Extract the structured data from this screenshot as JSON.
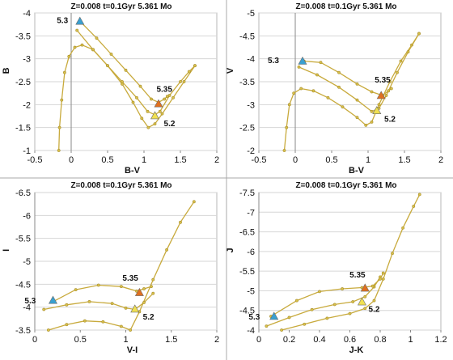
{
  "chart_data": [
    {
      "id": "BV_B",
      "type": "line",
      "title": "Z=0.008  t=0.1Gyr  5.361 Mo",
      "xlabel": "B-V",
      "ylabel": "B",
      "xlim": [
        -0.5,
        2
      ],
      "ylim": [
        -1,
        -4
      ],
      "xticks": [
        -0.5,
        0,
        0.5,
        1,
        1.5,
        2
      ],
      "yticks": [
        -1,
        -1.5,
        -2,
        -2.5,
        -3,
        -3.5,
        -4
      ],
      "xtick_labels": [
        "-0.5",
        "0",
        "0.5",
        "1",
        "1.5",
        "2"
      ],
      "ytick_labels": [
        "-1",
        "-1.5",
        "-2",
        "-2.5",
        "-3",
        "-3.5",
        "-4"
      ],
      "y_inverted": true,
      "grid": true,
      "series": [
        {
          "x": [
            -0.17,
            -0.16,
            -0.13,
            -0.09,
            -0.03,
            0.05,
            0.15,
            0.3,
            0.5,
            0.7,
            0.85,
            0.97,
            1.06,
            1.15,
            1.25,
            1.4,
            1.55,
            1.7
          ],
          "y": [
            -1.0,
            -1.5,
            -2.1,
            -2.7,
            -3.05,
            -3.25,
            -3.3,
            -3.2,
            -2.85,
            -2.45,
            -2.05,
            -1.7,
            -1.5,
            -1.58,
            -1.8,
            -2.15,
            -2.5,
            -2.85
          ]
        },
        {
          "x": [
            0.08,
            0.3,
            0.5,
            0.7,
            0.9,
            1.05,
            1.15,
            1.22,
            1.35,
            1.5,
            1.62,
            1.7
          ],
          "y": [
            -3.62,
            -3.2,
            -2.85,
            -2.5,
            -2.15,
            -1.85,
            -1.78,
            -1.85,
            -2.2,
            -2.5,
            -2.72,
            -2.85
          ]
        },
        {
          "x": [
            0.12,
            0.35,
            0.55,
            0.75,
            0.95,
            1.1,
            1.2,
            1.28,
            1.32
          ],
          "y": [
            -3.82,
            -3.45,
            -3.1,
            -2.75,
            -2.4,
            -2.12,
            -2.05,
            -2.12,
            -2.18
          ]
        }
      ],
      "markers": [
        {
          "label": "5.3",
          "x": 0.12,
          "y": -3.82,
          "color": "#3aa0d0",
          "lx": -0.12,
          "ly": -3.85
        },
        {
          "label": "5.35",
          "x": 1.2,
          "y": -2.02,
          "color": "#e07020",
          "lx": 1.28,
          "ly": -2.35
        },
        {
          "label": "5.2",
          "x": 1.15,
          "y": -1.76,
          "color": "#f0e050",
          "lx": 1.35,
          "ly": -1.6
        }
      ]
    },
    {
      "id": "BV_V",
      "type": "line",
      "title": "Z=0.008  t=0.1Gyr  5.361 Mo",
      "xlabel": "B-V",
      "ylabel": "V",
      "xlim": [
        -0.5,
        2
      ],
      "ylim": [
        -2,
        -5
      ],
      "xticks": [
        -0.5,
        0,
        0.5,
        1,
        1.5,
        2
      ],
      "yticks": [
        -2,
        -2.5,
        -3,
        -3.5,
        -4,
        -4.5,
        -5
      ],
      "xtick_labels": [
        "-0.5",
        "0",
        "0.5",
        "1",
        "1.5",
        "2"
      ],
      "ytick_labels": [
        "-2",
        "-2.5",
        "-3",
        "-3.5",
        "-4",
        "-4.5",
        "-5"
      ],
      "y_inverted": true,
      "grid": true,
      "series": [
        {
          "x": [
            -0.15,
            -0.12,
            -0.08,
            -0.02,
            0.08,
            0.25,
            0.45,
            0.65,
            0.85,
            0.97,
            1.05,
            1.15,
            1.3,
            1.45,
            1.6,
            1.7
          ],
          "y": [
            -2.0,
            -2.5,
            -3.0,
            -3.25,
            -3.35,
            -3.3,
            -3.15,
            -2.95,
            -2.72,
            -2.55,
            -2.62,
            -3.0,
            -3.5,
            -3.95,
            -4.3,
            -4.55
          ]
        },
        {
          "x": [
            0.05,
            0.3,
            0.6,
            0.85,
            1.05,
            1.15,
            1.25,
            1.4,
            1.55,
            1.7
          ],
          "y": [
            -3.82,
            -3.65,
            -3.38,
            -3.1,
            -2.85,
            -2.92,
            -3.2,
            -3.7,
            -4.15,
            -4.55
          ]
        },
        {
          "x": [
            0.12,
            0.35,
            0.6,
            0.85,
            1.05,
            1.2,
            1.28,
            1.32
          ],
          "y": [
            -3.95,
            -3.92,
            -3.7,
            -3.45,
            -3.28,
            -3.2,
            -3.3,
            -3.35
          ]
        }
      ],
      "markers": [
        {
          "label": "5.3",
          "x": 0.1,
          "y": -3.95,
          "color": "#3aa0d0",
          "lx": -0.3,
          "ly": -3.98
        },
        {
          "label": "5.35",
          "x": 1.18,
          "y": -3.2,
          "color": "#e07020",
          "lx": 1.2,
          "ly": -3.55
        },
        {
          "label": "5.2",
          "x": 1.12,
          "y": -2.87,
          "color": "#f0e050",
          "lx": 1.3,
          "ly": -2.7
        }
      ]
    },
    {
      "id": "VI_I",
      "type": "line",
      "title": "Z=0.008  t=0.1Gyr  5.361 Mo",
      "xlabel": "V-I",
      "ylabel": "I",
      "xlim": [
        0,
        2
      ],
      "ylim": [
        -3.5,
        -6.5
      ],
      "xticks": [
        0,
        0.5,
        1,
        1.5,
        2
      ],
      "yticks": [
        -3.5,
        -4,
        -4.5,
        -5,
        -5.5,
        -6,
        -6.5
      ],
      "xtick_labels": [
        "0",
        "0.5",
        "1",
        "1.5",
        "2"
      ],
      "ytick_labels": [
        "-3.5",
        "-4",
        "-4.5",
        "-5",
        "-5.5",
        "-6",
        "-6.5"
      ],
      "y_inverted": true,
      "grid": true,
      "series": [
        {
          "x": [
            0.15,
            0.35,
            0.55,
            0.75,
            0.95,
            1.05,
            1.15,
            1.3,
            1.45,
            1.6,
            1.75
          ],
          "y": [
            -3.5,
            -3.62,
            -3.7,
            -3.68,
            -3.58,
            -3.5,
            -3.9,
            -4.6,
            -5.25,
            -5.85,
            -6.3
          ]
        },
        {
          "x": [
            0.1,
            0.35,
            0.6,
            0.85,
            1.0,
            1.1,
            1.2,
            1.3
          ],
          "y": [
            -3.95,
            -4.05,
            -4.12,
            -4.08,
            -3.98,
            -3.95,
            -4.1,
            -4.3
          ]
        },
        {
          "x": [
            0.2,
            0.45,
            0.7,
            0.95,
            1.12,
            1.2,
            1.28
          ],
          "y": [
            -4.12,
            -4.38,
            -4.48,
            -4.45,
            -4.35,
            -4.4,
            -4.45
          ]
        }
      ],
      "markers": [
        {
          "label": "5.3",
          "x": 0.2,
          "y": -4.15,
          "color": "#3aa0d0",
          "lx": -0.05,
          "ly": -4.15
        },
        {
          "label": "5.35",
          "x": 1.15,
          "y": -4.32,
          "color": "#e07020",
          "lx": 1.05,
          "ly": -4.65
        },
        {
          "label": "5.2",
          "x": 1.1,
          "y": -3.96,
          "color": "#f0e050",
          "lx": 1.25,
          "ly": -3.8
        }
      ]
    },
    {
      "id": "JK_J",
      "type": "line",
      "title": "Z=0.008  t=0.1Gyr  5.361 Mo",
      "xlabel": "J-K",
      "ylabel": "J",
      "xlim": [
        0,
        1.2
      ],
      "ylim": [
        -4,
        -7.5
      ],
      "xticks": [
        0,
        0.2,
        0.4,
        0.6,
        0.8,
        1,
        1.2
      ],
      "yticks": [
        -4,
        -4.5,
        -5,
        -5.5,
        -6,
        -6.5,
        -7,
        -7.5
      ],
      "xtick_labels": [
        "0",
        "0.2",
        "0.4",
        "0.6",
        "0.8",
        "1",
        "1.2"
      ],
      "ytick_labels": [
        "-4",
        "-4.5",
        "-5",
        "-5.5",
        "-6",
        "-6.5",
        "-7",
        "-7.5"
      ],
      "y_inverted": true,
      "grid": true,
      "series": [
        {
          "x": [
            0.15,
            0.3,
            0.45,
            0.6,
            0.7,
            0.76,
            0.82,
            0.88,
            0.95,
            1.02,
            1.06
          ],
          "y": [
            -4.0,
            -4.15,
            -4.3,
            -4.42,
            -4.55,
            -4.75,
            -5.3,
            -5.95,
            -6.6,
            -7.15,
            -7.45
          ]
        },
        {
          "x": [
            0.05,
            0.2,
            0.35,
            0.5,
            0.62,
            0.7,
            0.76,
            0.8
          ],
          "y": [
            -4.1,
            -4.32,
            -4.52,
            -4.65,
            -4.72,
            -4.85,
            -5.1,
            -5.35
          ]
        },
        {
          "x": [
            0.08,
            0.25,
            0.4,
            0.55,
            0.68,
            0.75,
            0.8,
            0.82
          ],
          "y": [
            -4.35,
            -4.75,
            -4.98,
            -5.05,
            -5.08,
            -5.12,
            -5.3,
            -5.45
          ]
        }
      ],
      "markers": [
        {
          "label": "5.3",
          "x": 0.1,
          "y": -4.35,
          "color": "#3aa0d0",
          "lx": -0.03,
          "ly": -4.35
        },
        {
          "label": "5.35",
          "x": 0.7,
          "y": -5.07,
          "color": "#e07020",
          "lx": 0.65,
          "ly": -5.42
        },
        {
          "label": "5.2",
          "x": 0.68,
          "y": -4.72,
          "color": "#f0e050",
          "lx": 0.76,
          "ly": -4.55
        }
      ]
    }
  ]
}
